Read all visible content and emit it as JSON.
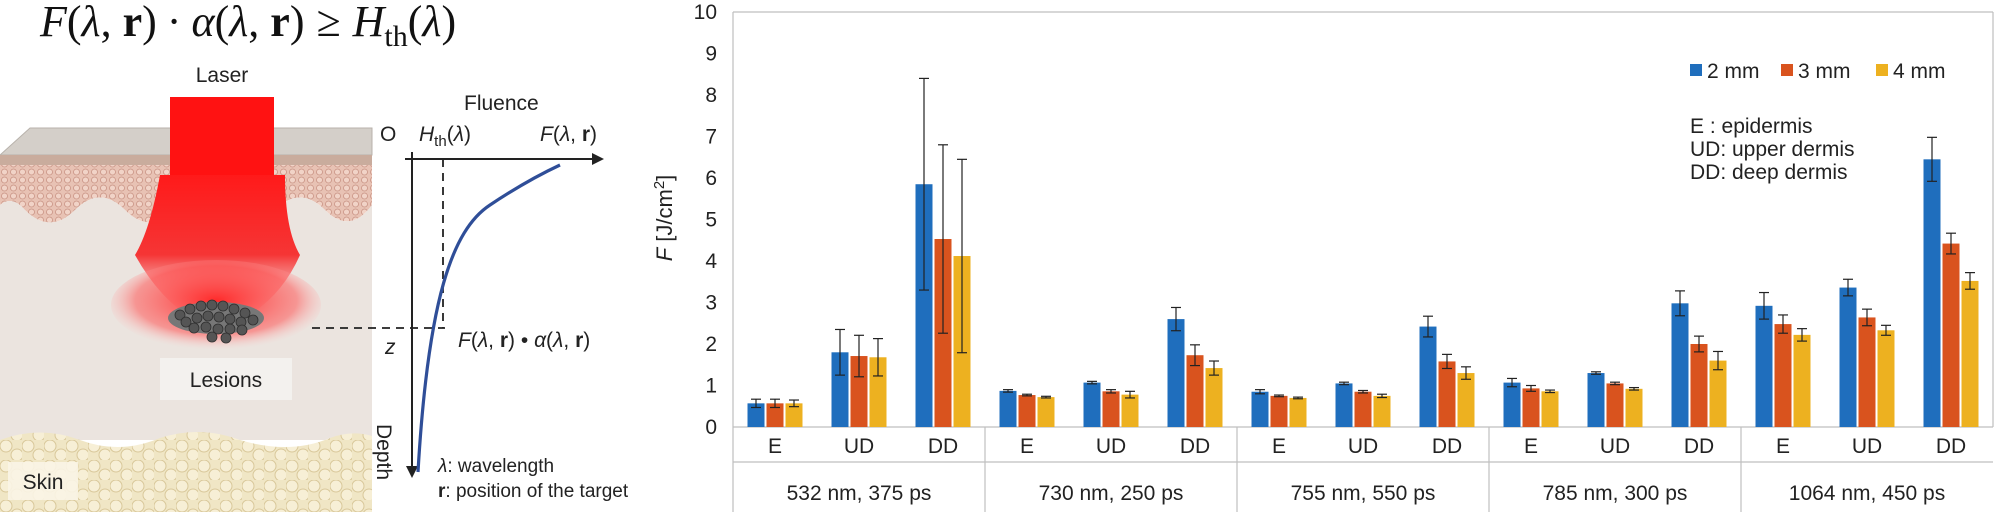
{
  "equation": {
    "F": "F",
    "lambda": "λ",
    "r": "r",
    "dot": "·",
    "alpha": "α",
    "geq": "≥",
    "H": "H",
    "th": "th",
    "open": "(",
    "comma": ", ",
    "close": ")"
  },
  "schematic": {
    "laser_label": "Laser",
    "lesions_label": "Lesions",
    "skin_label": "Skin",
    "fluence_label": "Fluence",
    "origin_label": "O",
    "depth_label": "Depth",
    "z_label": "z",
    "H": "H",
    "th": "th",
    "F": "F",
    "alpha": "α",
    "lambda": "λ",
    "r": "r",
    "open": "(",
    "comma": ", ",
    "close": ")",
    "bullet": " • ",
    "legend_lambda_text": ": wavelength",
    "legend_r_text": ": position of the target"
  },
  "chart_data": {
    "type": "bar",
    "title": "",
    "xlabel": "",
    "ylabel": {
      "italic": "F",
      "text": " [J/cm",
      "sup": "2",
      "end": "]"
    },
    "ylim": [
      0,
      10
    ],
    "yticks": [
      "0",
      "1",
      "2",
      "3",
      "4",
      "5",
      "6",
      "7",
      "8",
      "9",
      "10"
    ],
    "grid": false,
    "legend_placement": "top-right",
    "colors": {
      "2 mm": "#1F6EBD",
      "3 mm": "#D9531E",
      "4 mm": "#EDB120"
    },
    "abbreviations": [
      {
        "abbr": "E",
        "sep": "   : ",
        "meaning": "epidermis"
      },
      {
        "abbr": "UD",
        "sep": ": ",
        "meaning": "upper dermis"
      },
      {
        "abbr": "DD",
        "sep": ": ",
        "meaning": "deep dermis"
      }
    ],
    "groups": [
      {
        "label": "532 nm, 375 ps",
        "categories": [
          "E",
          "UD",
          "DD"
        ]
      },
      {
        "label": "730 nm, 250 ps",
        "categories": [
          "E",
          "UD",
          "DD"
        ]
      },
      {
        "label": "755 nm, 550 ps",
        "categories": [
          "E",
          "UD",
          "DD"
        ]
      },
      {
        "label": "785 nm, 300 ps",
        "categories": [
          "E",
          "UD",
          "DD"
        ]
      },
      {
        "label": "1064 nm, 450 ps",
        "categories": [
          "E",
          "UD",
          "DD"
        ]
      }
    ],
    "series": [
      {
        "name": "2 mm",
        "values": [
          0.57,
          1.8,
          5.85,
          0.87,
          1.07,
          2.6,
          0.85,
          1.05,
          2.42,
          1.07,
          1.3,
          2.98,
          2.92,
          3.36,
          6.45
        ],
        "errors": [
          0.1,
          0.55,
          2.55,
          0.03,
          0.03,
          0.28,
          0.05,
          0.03,
          0.25,
          0.1,
          0.03,
          0.3,
          0.32,
          0.2,
          0.53
        ]
      },
      {
        "name": "3 mm",
        "values": [
          0.57,
          1.71,
          4.53,
          0.77,
          0.86,
          1.73,
          0.75,
          0.85,
          1.58,
          0.93,
          1.05,
          2.0,
          2.48,
          2.64,
          4.42
        ],
        "errors": [
          0.1,
          0.5,
          2.27,
          0.02,
          0.04,
          0.25,
          0.02,
          0.03,
          0.17,
          0.07,
          0.03,
          0.19,
          0.22,
          0.2,
          0.25
        ]
      },
      {
        "name": "4 mm",
        "values": [
          0.57,
          1.68,
          4.12,
          0.72,
          0.78,
          1.42,
          0.7,
          0.75,
          1.3,
          0.86,
          0.92,
          1.6,
          2.22,
          2.33,
          3.52
        ],
        "errors": [
          0.08,
          0.45,
          2.33,
          0.02,
          0.08,
          0.17,
          0.02,
          0.04,
          0.15,
          0.03,
          0.03,
          0.22,
          0.15,
          0.12,
          0.2
        ]
      }
    ]
  }
}
